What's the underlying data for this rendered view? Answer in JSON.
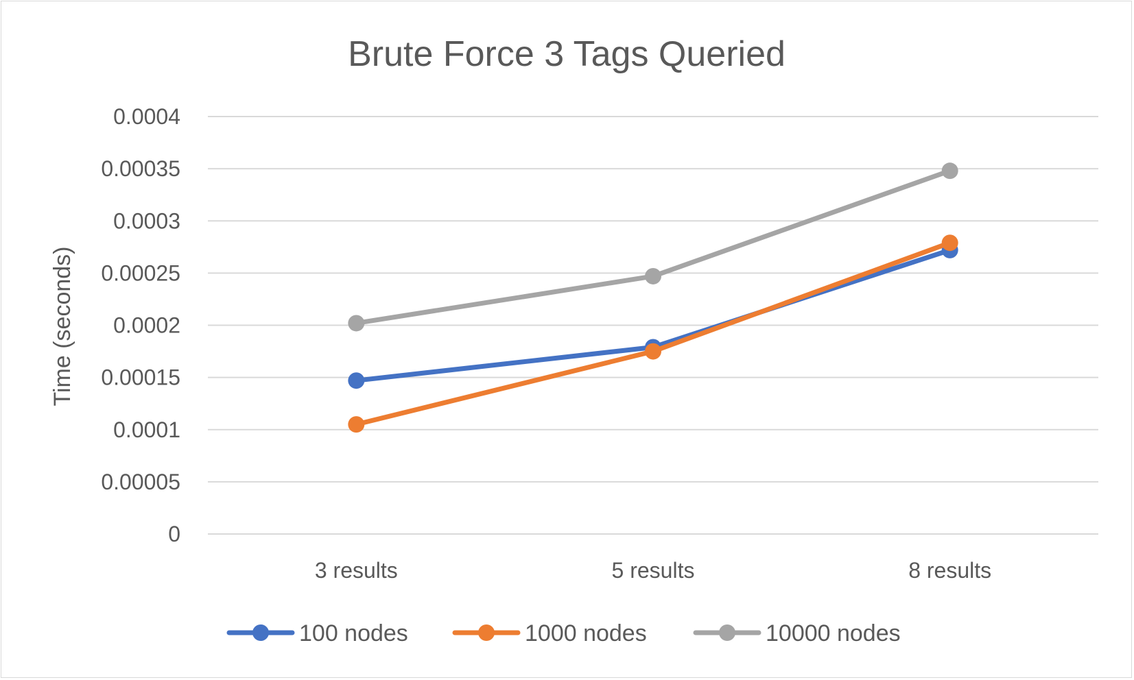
{
  "chart_data": {
    "type": "line",
    "title": "Brute Force 3 Tags Queried",
    "xlabel": "",
    "ylabel": "Time (seconds)",
    "categories": [
      "3 results",
      "5 results",
      "8 results"
    ],
    "ylim": [
      0,
      0.0004
    ],
    "yticks": [
      0,
      5e-05,
      0.0001,
      0.00015,
      0.0002,
      0.00025,
      0.0003,
      0.00035,
      0.0004
    ],
    "ytick_labels": [
      "0",
      "0.00005",
      "0.0001",
      "0.00015",
      "0.0002",
      "0.00025",
      "0.0003",
      "0.00035",
      "0.0004"
    ],
    "grid": true,
    "legend_position": "bottom",
    "series": [
      {
        "name": "100 nodes",
        "color": "#4472c4",
        "values": [
          0.000147,
          0.000179,
          0.000272
        ]
      },
      {
        "name": "1000 nodes",
        "color": "#ed7d31",
        "values": [
          0.000105,
          0.000175,
          0.000279
        ]
      },
      {
        "name": "10000 nodes",
        "color": "#a5a5a5",
        "values": [
          0.000202,
          0.000247,
          0.000348
        ]
      }
    ]
  }
}
